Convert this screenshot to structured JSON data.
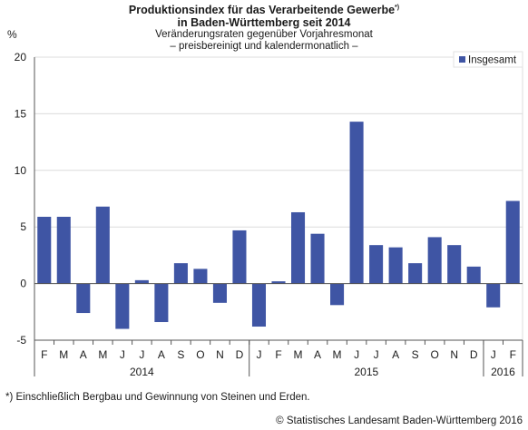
{
  "header": {
    "title_line1": "Produktionsindex für das Verarbeitende Gewerbe",
    "title_mark": "*)",
    "title_line2": "in Baden-Württemberg seit 2014",
    "subtitle_line1": "Veränderungsraten gegenüber Vorjahresmonat",
    "subtitle_line2": "– preisbereinigt und kalendermonatlich –"
  },
  "footer": {
    "footnote": "*) Einschließlich Bergbau und Gewinnung von Steinen und Erden.",
    "source": "© Statistisches Landesamt Baden-Württemberg 2016"
  },
  "colors": {
    "bar": "#3f55a4",
    "grid": "#dcdcdc",
    "axis": "#555555"
  },
  "chart_data": {
    "type": "bar",
    "ylabel": "%",
    "ylim": [
      -5,
      20
    ],
    "yticks": [
      -5,
      0,
      5,
      10,
      15,
      20
    ],
    "grid": true,
    "legend_position": "top-right",
    "categories": [
      "F",
      "M",
      "A",
      "M",
      "J",
      "J",
      "A",
      "S",
      "O",
      "N",
      "D",
      "J",
      "F",
      "M",
      "A",
      "M",
      "J",
      "J",
      "A",
      "S",
      "O",
      "N",
      "D",
      "J",
      "F"
    ],
    "years": [
      {
        "label": "2014",
        "count": 11
      },
      {
        "label": "2015",
        "count": 12
      },
      {
        "label": "2016",
        "count": 2
      }
    ],
    "series": [
      {
        "name": "Insgesamt",
        "values": [
          5.9,
          5.9,
          -2.6,
          6.8,
          -4.0,
          0.3,
          -3.4,
          1.8,
          1.3,
          -1.7,
          4.7,
          -3.8,
          0.2,
          6.3,
          4.4,
          -1.9,
          14.3,
          3.4,
          3.2,
          1.8,
          4.1,
          3.4,
          1.5,
          -2.1,
          7.3
        ]
      }
    ]
  }
}
